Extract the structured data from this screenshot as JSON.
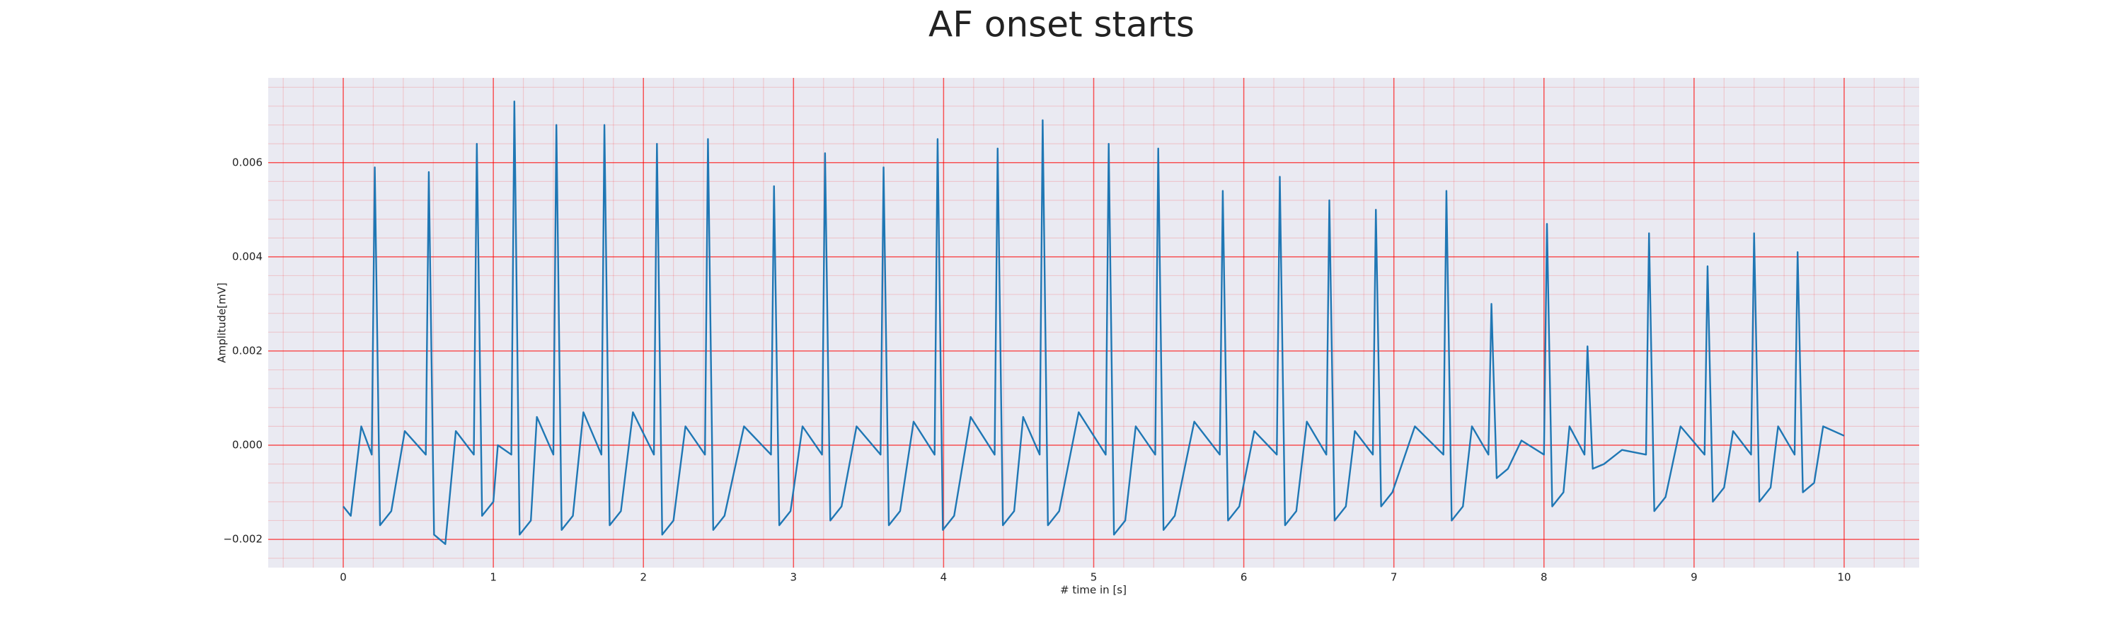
{
  "chart_data": {
    "type": "line",
    "title": "AF onset starts",
    "x_label": "# time in [s]",
    "y_label": "Amplitude[mV]",
    "xlim": [
      -0.5,
      10.5
    ],
    "ylim": [
      -0.0026,
      0.0078
    ],
    "xticks": [
      0,
      1,
      2,
      3,
      4,
      5,
      6,
      7,
      8,
      9,
      10
    ],
    "yticks": [
      {
        "value": -0.002,
        "label": "−0.002"
      },
      {
        "value": 0,
        "label": "0.000"
      },
      0.002,
      0.004,
      0.006
    ],
    "grid": true,
    "grid_color": "#ff0000",
    "minor_grid": {
      "x_step": 0.2,
      "y_step": 0.0004
    },
    "background": "#eaeaf2",
    "series": [
      {
        "color": "#1f77b4",
        "x": [
          0,
          0.05,
          0.12,
          0.19,
          0.21,
          0.245,
          0.32,
          0.41,
          0.55,
          0.57,
          0.605,
          0.68,
          0.75,
          0.87,
          0.89,
          0.925,
          1.0,
          1.03,
          1.12,
          1.14,
          1.175,
          1.25,
          1.29,
          1.4,
          1.42,
          1.455,
          1.53,
          1.6,
          1.72,
          1.74,
          1.775,
          1.85,
          1.93,
          2.07,
          2.09,
          2.125,
          2.2,
          2.28,
          2.41,
          2.43,
          2.465,
          2.54,
          2.67,
          2.85,
          2.87,
          2.905,
          2.98,
          3.06,
          3.19,
          3.21,
          3.245,
          3.32,
          3.42,
          3.58,
          3.6,
          3.635,
          3.71,
          3.8,
          3.94,
          3.96,
          3.995,
          4.07,
          4.18,
          4.34,
          4.36,
          4.395,
          4.47,
          4.53,
          4.64,
          4.66,
          4.695,
          4.77,
          4.9,
          5.08,
          5.1,
          5.135,
          5.21,
          5.28,
          5.41,
          5.43,
          5.465,
          5.54,
          5.67,
          5.84,
          5.86,
          5.895,
          5.97,
          6.07,
          6.22,
          6.24,
          6.275,
          6.35,
          6.42,
          6.55,
          6.57,
          6.605,
          6.68,
          6.74,
          6.86,
          6.88,
          6.915,
          6.99,
          7.14,
          7.33,
          7.35,
          7.385,
          7.46,
          7.52,
          7.63,
          7.65,
          7.685,
          7.76,
          7.85,
          8.0,
          8.02,
          8.055,
          8.13,
          8.17,
          8.27,
          8.29,
          8.325,
          8.4,
          8.52,
          8.68,
          8.7,
          8.735,
          8.81,
          8.91,
          9.07,
          9.09,
          9.125,
          9.2,
          9.26,
          9.38,
          9.4,
          9.435,
          9.51,
          9.56,
          9.67,
          9.69,
          9.725,
          9.8,
          9.86,
          10.0
        ],
        "values": [
          -0.0013,
          -0.0015,
          0.0004,
          -0.0002,
          0.0059,
          -0.0017,
          -0.0014,
          0.0003,
          -0.0002,
          0.0058,
          -0.0019,
          -0.0021,
          0.0003,
          -0.0002,
          0.0064,
          -0.0015,
          -0.0012,
          0.0,
          -0.0002,
          0.0073,
          -0.0019,
          -0.0016,
          0.0006,
          -0.0002,
          0.0068,
          -0.0018,
          -0.0015,
          0.0007,
          -0.0002,
          0.0068,
          -0.0017,
          -0.0014,
          0.0007,
          -0.0002,
          0.0064,
          -0.0019,
          -0.0016,
          0.0004,
          -0.0002,
          0.0065,
          -0.0018,
          -0.0015,
          0.0004,
          -0.0002,
          0.0055,
          -0.0017,
          -0.0014,
          0.0004,
          -0.0002,
          0.0062,
          -0.0016,
          -0.0013,
          0.0004,
          -0.0002,
          0.0059,
          -0.0017,
          -0.0014,
          0.0005,
          -0.0002,
          0.0065,
          -0.0018,
          -0.0015,
          0.0006,
          -0.0002,
          0.0063,
          -0.0017,
          -0.0014,
          0.0006,
          -0.0002,
          0.0069,
          -0.0017,
          -0.0014,
          0.0007,
          -0.0002,
          0.0064,
          -0.0019,
          -0.0016,
          0.0004,
          -0.0002,
          0.0063,
          -0.0018,
          -0.0015,
          0.0005,
          -0.0002,
          0.0054,
          -0.0016,
          -0.0013,
          0.0003,
          -0.0002,
          0.0057,
          -0.0017,
          -0.0014,
          0.0005,
          -0.0002,
          0.0052,
          -0.0016,
          -0.0013,
          0.0003,
          -0.0002,
          0.005,
          -0.0013,
          -0.001,
          0.0004,
          -0.0002,
          0.0054,
          -0.0016,
          -0.0013,
          0.0004,
          -0.0002,
          0.003,
          -0.0007,
          -0.0005,
          0.0001,
          -0.0002,
          0.0047,
          -0.0013,
          -0.001,
          0.0004,
          -0.0002,
          0.0021,
          -0.0005,
          -0.0004,
          -0.0001,
          -0.0002,
          0.0045,
          -0.0014,
          -0.0011,
          0.0004,
          -0.0002,
          0.0038,
          -0.0012,
          -0.0009,
          0.0003,
          -0.0002,
          0.0045,
          -0.0012,
          -0.0009,
          0.0004,
          -0.0002,
          0.0041,
          -0.001,
          -0.0008,
          0.0004,
          0.0002
        ]
      }
    ]
  }
}
